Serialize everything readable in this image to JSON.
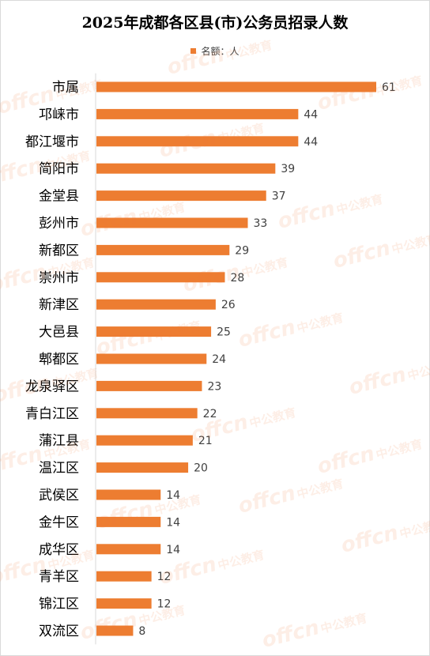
{
  "chart_data": {
    "type": "bar",
    "orientation": "horizontal",
    "title": "2025年成都各区县(市)公务员招录人数",
    "legend_position": "top",
    "series": [
      {
        "name": "名额：人",
        "color": "#ed7d31",
        "values": [
          61,
          44,
          44,
          39,
          37,
          33,
          29,
          28,
          26,
          25,
          24,
          23,
          22,
          21,
          20,
          14,
          14,
          14,
          12,
          12,
          8
        ]
      }
    ],
    "categories": [
      "市属",
      "邛崃市",
      "都江堰市",
      "简阳市",
      "金堂县",
      "彭州市",
      "新都区",
      "崇州市",
      "新津区",
      "大邑县",
      "郫都区",
      "龙泉驿区",
      "青白江区",
      "蒲江县",
      "温江区",
      "武侯区",
      "金牛区",
      "成华区",
      "青羊区",
      "锦江区",
      "双流区"
    ],
    "xlim": [
      0,
      61
    ],
    "grid": false,
    "data_labels": true,
    "xlabel": "",
    "ylabel": ""
  },
  "watermark": {
    "logo": "offcn",
    "text": "中公教育"
  }
}
